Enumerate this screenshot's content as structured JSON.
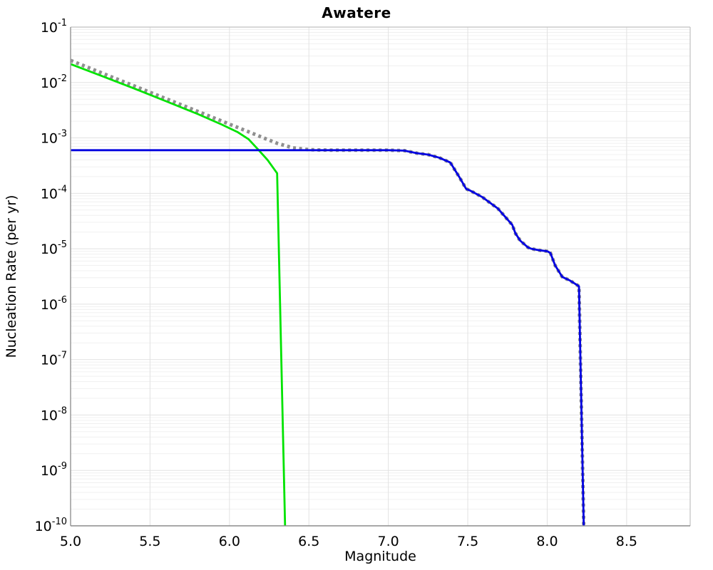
{
  "chart_data": {
    "type": "line",
    "title": "Awatere",
    "xlabel": "Magnitude",
    "ylabel": "Nucleation Rate (per yr)",
    "xlim": [
      5.0,
      8.9
    ],
    "ylim_exp": [
      -1,
      -10
    ],
    "x_ticks": [
      5.0,
      5.5,
      6.0,
      6.5,
      7.0,
      7.5,
      8.0,
      8.5
    ],
    "y_ticks_exp": [
      -1,
      -2,
      -3,
      -4,
      -5,
      -6,
      -7,
      -8,
      -9,
      -10
    ],
    "grid": "on",
    "legend": "none",
    "plateau_rate": 0.0006,
    "series": [
      {
        "name": "target-gr-rate-dotted",
        "color": "#8f8f8f",
        "style": "dotted",
        "width": 5,
        "points": [
          [
            5.0,
            0.025
          ],
          [
            5.2,
            0.0147
          ],
          [
            5.4,
            0.00867
          ],
          [
            5.6,
            0.00511
          ],
          [
            5.8,
            0.00301
          ],
          [
            6.0,
            0.00177
          ],
          [
            6.1,
            0.00136
          ],
          [
            6.2,
            0.00104
          ],
          [
            6.3,
            0.0008
          ],
          [
            6.4,
            0.00066
          ],
          [
            6.5,
            0.000615
          ],
          [
            6.6,
            0.000603
          ],
          [
            6.7,
            0.0006
          ],
          [
            7.0,
            0.0006
          ],
          [
            7.1,
            0.00059
          ],
          [
            7.18,
            0.00053
          ],
          [
            7.25,
            0.0005
          ],
          [
            7.32,
            0.00044
          ],
          [
            7.39,
            0.00036
          ],
          [
            7.45,
            0.00019
          ],
          [
            7.49,
            0.00012
          ],
          [
            7.51,
            0.000114
          ],
          [
            7.59,
            8.6e-05
          ],
          [
            7.69,
            5.3e-05
          ],
          [
            7.78,
            2.7e-05
          ],
          [
            7.8,
            1.9e-05
          ],
          [
            7.83,
            1.4e-05
          ],
          [
            7.88,
            1.05e-05
          ],
          [
            7.9,
            1e-05
          ],
          [
            7.95,
            9.4e-06
          ],
          [
            8.0,
            9e-06
          ],
          [
            8.02,
            8.4e-06
          ],
          [
            8.05,
            5e-06
          ],
          [
            8.095,
            3.1e-06
          ],
          [
            8.14,
            2.7e-06
          ],
          [
            8.19,
            2.2e-06
          ],
          [
            8.2,
            2.1e-06
          ],
          [
            8.23,
            1e-10
          ]
        ]
      },
      {
        "name": "green-truncated-mfd",
        "color": "#00e300",
        "style": "solid",
        "width": 2.8,
        "points": [
          [
            5.0,
            0.0215
          ],
          [
            5.2,
            0.013
          ],
          [
            5.4,
            0.0078
          ],
          [
            5.6,
            0.0046
          ],
          [
            5.8,
            0.0027
          ],
          [
            5.95,
            0.00175
          ],
          [
            6.05,
            0.00128
          ],
          [
            6.12,
            0.00095
          ],
          [
            6.18,
            0.00062
          ],
          [
            6.24,
            0.0004
          ],
          [
            6.3,
            0.00023
          ],
          [
            6.35,
            1e-10
          ]
        ]
      },
      {
        "name": "blue-nucleation-mfd",
        "color": "#0000e0",
        "style": "solid",
        "width": 2.8,
        "points": [
          [
            5.0,
            0.0006
          ],
          [
            6.0,
            0.0006
          ],
          [
            7.0,
            0.0006
          ],
          [
            7.1,
            0.00059
          ],
          [
            7.18,
            0.00053
          ],
          [
            7.25,
            0.0005
          ],
          [
            7.32,
            0.00044
          ],
          [
            7.39,
            0.00036
          ],
          [
            7.45,
            0.00019
          ],
          [
            7.49,
            0.00012
          ],
          [
            7.51,
            0.000114
          ],
          [
            7.59,
            8.6e-05
          ],
          [
            7.69,
            5.3e-05
          ],
          [
            7.78,
            2.7e-05
          ],
          [
            7.8,
            1.9e-05
          ],
          [
            7.83,
            1.4e-05
          ],
          [
            7.88,
            1.05e-05
          ],
          [
            7.9,
            1e-05
          ],
          [
            7.95,
            9.4e-06
          ],
          [
            8.0,
            9e-06
          ],
          [
            8.02,
            8.4e-06
          ],
          [
            8.05,
            5e-06
          ],
          [
            8.095,
            3.1e-06
          ],
          [
            8.14,
            2.7e-06
          ],
          [
            8.19,
            2.2e-06
          ],
          [
            8.2,
            2.1e-06
          ],
          [
            8.23,
            1e-10
          ]
        ]
      }
    ]
  }
}
